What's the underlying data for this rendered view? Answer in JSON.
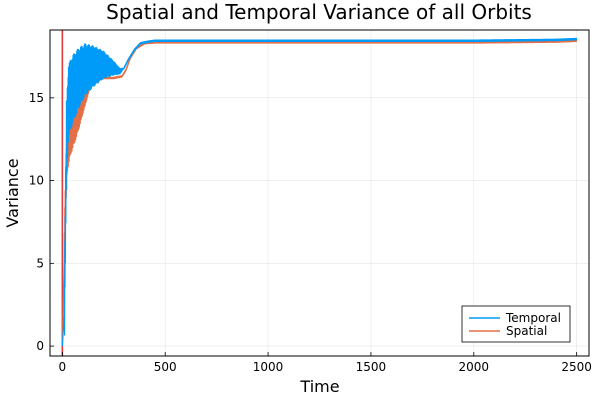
{
  "chart_data": {
    "type": "line",
    "title": "Spatial and Temporal Variance of all Orbits",
    "xlabel": "Time",
    "ylabel": "Variance",
    "xlim": [
      -60,
      2560
    ],
    "ylim": [
      -0.6,
      19.1
    ],
    "xticks": [
      0,
      500,
      1000,
      1500,
      2000,
      2500
    ],
    "yticks": [
      0,
      5,
      10,
      15
    ],
    "grid": true,
    "legend_position": "bottom-right",
    "vertical_line": {
      "x": 0,
      "color": "#e03a3e"
    },
    "series": [
      {
        "name": "Temporal",
        "color": "#009af9",
        "oscillating_range": [
          10,
          300
        ],
        "x": [
          0,
          10,
          20,
          30,
          50,
          80,
          110,
          150,
          200,
          250,
          280,
          300,
          320,
          350,
          380,
          420,
          450,
          500,
          1000,
          1500,
          2000,
          2400,
          2500
        ],
        "y": [
          0,
          2.0,
          12.5,
          14.8,
          15.5,
          16.2,
          16.7,
          16.9,
          17.0,
          16.8,
          16.6,
          16.8,
          17.3,
          17.9,
          18.3,
          18.4,
          18.45,
          18.45,
          18.45,
          18.45,
          18.45,
          18.5,
          18.55
        ]
      },
      {
        "name": "Spatial",
        "color": "#e26f46",
        "oscillating_range": [
          10,
          150
        ],
        "x": [
          0,
          5,
          10,
          15,
          25,
          40,
          60,
          80,
          100,
          130,
          150,
          200,
          250,
          290,
          310,
          330,
          360,
          400,
          450,
          500,
          1000,
          1500,
          2000,
          2400,
          2500
        ],
        "y": [
          0,
          3.0,
          5.5,
          9.0,
          12.0,
          12.8,
          13.3,
          13.9,
          14.6,
          15.6,
          16.0,
          16.2,
          16.2,
          16.3,
          16.7,
          17.4,
          18.0,
          18.3,
          18.35,
          18.35,
          18.35,
          18.35,
          18.35,
          18.4,
          18.45
        ]
      }
    ]
  }
}
